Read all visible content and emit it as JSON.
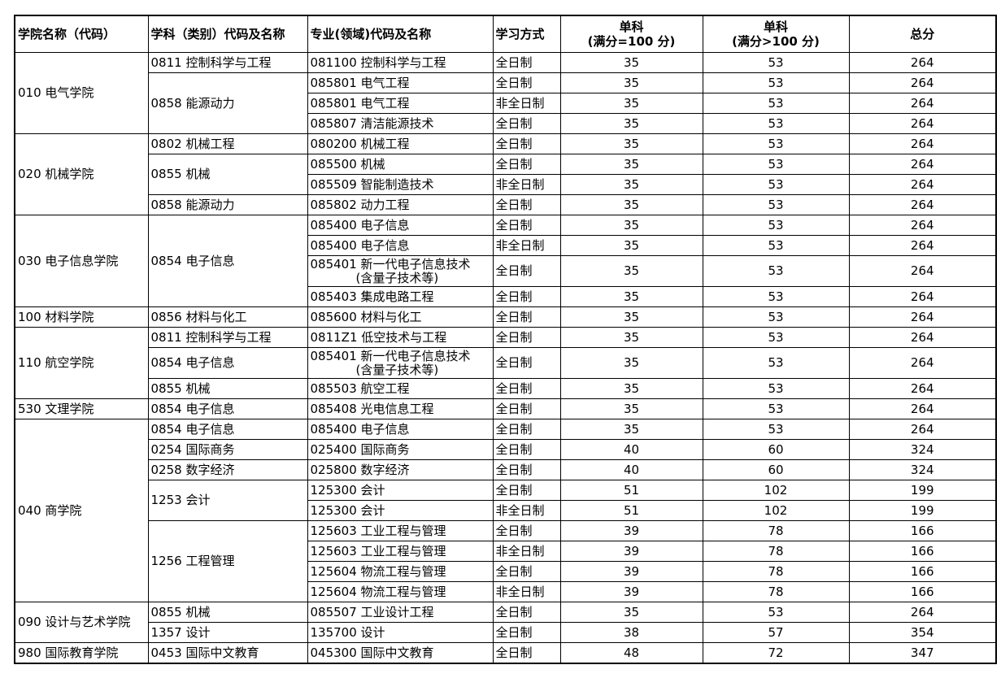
{
  "headers": {
    "college": "学院名称（代码）",
    "discipline": "学科（类别）代码及名称",
    "major": "专业(领域)代码及名称",
    "mode": "学习方式",
    "single100_line1": "单科",
    "single100_line2": "(满分=100 分)",
    "single_gt100_line1": "单科",
    "single_gt100_line2": "(满分>100 分)",
    "total": "总分"
  },
  "rows": [
    {
      "college": "010 电气学院",
      "college_span": 4,
      "discipline": "0811 控制科学与工程",
      "discipline_span": 1,
      "major": "081100 控制科学与工程",
      "mode": "全日制",
      "s100": "35",
      "sgt100": "53",
      "total": "264"
    },
    {
      "discipline": "0858 能源动力",
      "discipline_span": 3,
      "major": "085801 电气工程",
      "mode": "全日制",
      "s100": "35",
      "sgt100": "53",
      "total": "264"
    },
    {
      "major": "085801 电气工程",
      "mode": "非全日制",
      "s100": "35",
      "sgt100": "53",
      "total": "264"
    },
    {
      "major": "085807 清洁能源技术",
      "mode": "全日制",
      "s100": "35",
      "sgt100": "53",
      "total": "264"
    },
    {
      "college": "020 机械学院",
      "college_span": 4,
      "discipline": "0802 机械工程",
      "discipline_span": 1,
      "major": "080200 机械工程",
      "mode": "全日制",
      "s100": "35",
      "sgt100": "53",
      "total": "264"
    },
    {
      "discipline": "0855 机械",
      "discipline_span": 2,
      "major": "085500 机械",
      "mode": "全日制",
      "s100": "35",
      "sgt100": "53",
      "total": "264"
    },
    {
      "major": "085509 智能制造技术",
      "mode": "非全日制",
      "s100": "35",
      "sgt100": "53",
      "total": "264"
    },
    {
      "discipline": "0858 能源动力",
      "discipline_span": 1,
      "major": "085802 动力工程",
      "mode": "全日制",
      "s100": "35",
      "sgt100": "53",
      "total": "264"
    },
    {
      "college": "030 电子信息学院",
      "college_span": 4,
      "discipline": "0854 电子信息",
      "discipline_span": 4,
      "major": "085400 电子信息",
      "mode": "全日制",
      "s100": "35",
      "sgt100": "53",
      "total": "264"
    },
    {
      "major": "085400 电子信息",
      "mode": "非全日制",
      "s100": "35",
      "sgt100": "53",
      "total": "264"
    },
    {
      "major": "085401 新一代电子信息技术",
      "major_sub": "(含量子技术等)",
      "mode": "全日制",
      "s100": "35",
      "sgt100": "53",
      "total": "264"
    },
    {
      "major": "085403 集成电路工程",
      "mode": "全日制",
      "s100": "35",
      "sgt100": "53",
      "total": "264"
    },
    {
      "college": "100 材料学院",
      "college_span": 1,
      "discipline": "0856 材料与化工",
      "discipline_span": 1,
      "major": "085600 材料与化工",
      "mode": "全日制",
      "s100": "35",
      "sgt100": "53",
      "total": "264"
    },
    {
      "college": "110 航空学院",
      "college_span": 3,
      "discipline": "0811 控制科学与工程",
      "discipline_span": 1,
      "major": "0811Z1 低空技术与工程",
      "mode": "全日制",
      "s100": "35",
      "sgt100": "53",
      "total": "264"
    },
    {
      "discipline": "0854 电子信息",
      "discipline_span": 1,
      "major": "085401 新一代电子信息技术",
      "major_sub": "(含量子技术等)",
      "mode": "全日制",
      "s100": "35",
      "sgt100": "53",
      "total": "264"
    },
    {
      "discipline": "0855 机械",
      "discipline_span": 1,
      "major": "085503 航空工程",
      "mode": "全日制",
      "s100": "35",
      "sgt100": "53",
      "total": "264"
    },
    {
      "college": "530 文理学院",
      "college_span": 1,
      "discipline": "0854 电子信息",
      "discipline_span": 1,
      "major": "085408 光电信息工程",
      "mode": "全日制",
      "s100": "35",
      "sgt100": "53",
      "total": "264"
    },
    {
      "college": "040 商学院",
      "college_span": 9,
      "discipline": "0854 电子信息",
      "discipline_span": 1,
      "major": "085400 电子信息",
      "mode": "全日制",
      "s100": "35",
      "sgt100": "53",
      "total": "264"
    },
    {
      "discipline": "0254 国际商务",
      "discipline_span": 1,
      "major": "025400 国际商务",
      "mode": "全日制",
      "s100": "40",
      "sgt100": "60",
      "total": "324"
    },
    {
      "discipline": "0258 数字经济",
      "discipline_span": 1,
      "major": "025800 数字经济",
      "mode": "全日制",
      "s100": "40",
      "sgt100": "60",
      "total": "324"
    },
    {
      "discipline": "1253 会计",
      "discipline_span": 2,
      "major": "125300 会计",
      "mode": "全日制",
      "s100": "51",
      "sgt100": "102",
      "total": "199"
    },
    {
      "major": "125300 会计",
      "mode": "非全日制",
      "s100": "51",
      "sgt100": "102",
      "total": "199"
    },
    {
      "discipline": "1256 工程管理",
      "discipline_span": 4,
      "major": "125603 工业工程与管理",
      "mode": "全日制",
      "s100": "39",
      "sgt100": "78",
      "total": "166"
    },
    {
      "major": "125603 工业工程与管理",
      "mode": "非全日制",
      "s100": "39",
      "sgt100": "78",
      "total": "166"
    },
    {
      "major": "125604 物流工程与管理",
      "mode": "全日制",
      "s100": "39",
      "sgt100": "78",
      "total": "166"
    },
    {
      "major": "125604 物流工程与管理",
      "mode": "非全日制",
      "s100": "39",
      "sgt100": "78",
      "total": "166"
    },
    {
      "college": "090 设计与艺术学院",
      "college_span": 2,
      "discipline": "0855 机械",
      "discipline_span": 1,
      "major": "085507 工业设计工程",
      "mode": "全日制",
      "s100": "35",
      "sgt100": "53",
      "total": "264"
    },
    {
      "discipline": "1357 设计",
      "discipline_span": 1,
      "major": "135700 设计",
      "mode": "全日制",
      "s100": "38",
      "sgt100": "57",
      "total": "354"
    },
    {
      "college": "980 国际教育学院",
      "college_span": 1,
      "discipline": "0453 国际中文教育",
      "discipline_span": 1,
      "major": "045300 国际中文教育",
      "mode": "全日制",
      "s100": "48",
      "sgt100": "72",
      "total": "347"
    }
  ]
}
